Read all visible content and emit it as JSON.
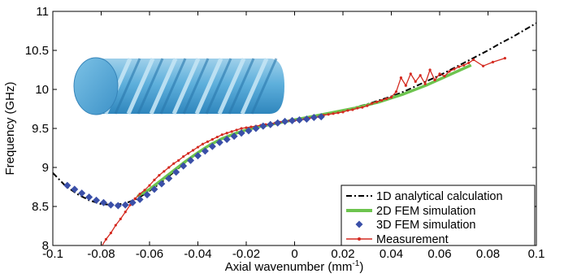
{
  "chart_data": {
    "type": "line",
    "title": "",
    "xlabel": "Axial wavenumber (mm",
    "xlabel_exponent": "-1",
    "xlabel_close": ")",
    "ylabel": "Frequency (GHz)",
    "xlim": [
      -0.1,
      0.1
    ],
    "ylim": [
      8,
      11
    ],
    "x_ticks": [
      "-0.1",
      "-0.08",
      "-0.06",
      "-0.04",
      "-0.02",
      "0",
      "0.02",
      "0.04",
      "0.06",
      "0.08",
      "0.1"
    ],
    "x_tick_values": [
      -0.1,
      -0.08,
      -0.06,
      -0.04,
      -0.02,
      0,
      0.02,
      0.04,
      0.06,
      0.08,
      0.1
    ],
    "y_ticks": [
      "8",
      "8.5",
      "9",
      "9.5",
      "10",
      "10.5",
      "11"
    ],
    "y_tick_values": [
      8,
      8.5,
      9,
      9.5,
      10,
      10.5,
      11
    ],
    "grid": false,
    "legend_position": "bottom-right",
    "inset_image": "twisted-helical-waveguide-rendering",
    "series": [
      {
        "name": "1D analytical calculation",
        "style": "dash-dot",
        "color": "#000000",
        "x": [
          -0.1,
          -0.095,
          -0.09,
          -0.085,
          -0.08,
          -0.075,
          -0.07,
          -0.065,
          -0.06,
          -0.055,
          -0.05,
          -0.045,
          -0.04,
          -0.035,
          -0.03,
          -0.025,
          -0.02,
          -0.015,
          -0.01,
          -0.005,
          0,
          0.005,
          0.01,
          0.015,
          0.02,
          0.025,
          0.03,
          0.035,
          0.04,
          0.045,
          0.05,
          0.055,
          0.06,
          0.065,
          0.07,
          0.075,
          0.08,
          0.085,
          0.09,
          0.095,
          0.1
        ],
        "y": [
          8.93,
          8.77,
          8.66,
          8.58,
          8.53,
          8.52,
          8.54,
          8.6,
          8.7,
          8.81,
          8.94,
          9.07,
          9.19,
          9.29,
          9.37,
          9.43,
          9.48,
          9.52,
          9.55,
          9.58,
          9.61,
          9.64,
          9.67,
          9.7,
          9.73,
          9.77,
          9.81,
          9.86,
          9.91,
          9.97,
          10.04,
          10.11,
          10.18,
          10.26,
          10.34,
          10.42,
          10.5,
          10.59,
          10.67,
          10.76,
          10.85
        ]
      },
      {
        "name": "2D FEM simulation",
        "style": "solid-thick",
        "color": "#6dc44e",
        "x": [
          -0.065,
          -0.06,
          -0.055,
          -0.05,
          -0.045,
          -0.04,
          -0.035,
          -0.03,
          -0.025,
          -0.02,
          -0.015,
          -0.01,
          -0.005,
          0,
          0.005,
          0.01,
          0.015,
          0.02,
          0.025,
          0.03,
          0.035,
          0.04,
          0.045,
          0.05,
          0.055,
          0.06,
          0.065,
          0.07,
          0.073
        ],
        "y": [
          8.63,
          8.72,
          8.84,
          8.96,
          9.08,
          9.19,
          9.29,
          9.37,
          9.43,
          9.48,
          9.52,
          9.55,
          9.58,
          9.61,
          9.64,
          9.67,
          9.7,
          9.73,
          9.76,
          9.8,
          9.84,
          9.89,
          9.94,
          10.0,
          10.06,
          10.13,
          10.2,
          10.27,
          10.31
        ]
      },
      {
        "name": "3D FEM simulation",
        "style": "diamond-markers",
        "color": "#3a4fa8",
        "x": [
          -0.094,
          -0.091,
          -0.088,
          -0.085,
          -0.082,
          -0.079,
          -0.076,
          -0.073,
          -0.07,
          -0.067,
          -0.064,
          -0.061,
          -0.058,
          -0.055,
          -0.052,
          -0.049,
          -0.046,
          -0.043,
          -0.04,
          -0.037,
          -0.034,
          -0.031,
          -0.028,
          -0.025,
          -0.022,
          -0.019,
          -0.016,
          -0.013,
          -0.01,
          -0.007,
          -0.004,
          -0.001,
          0.002,
          0.005,
          0.008,
          0.011
        ],
        "y": [
          8.77,
          8.72,
          8.67,
          8.62,
          8.58,
          8.55,
          8.52,
          8.51,
          8.52,
          8.55,
          8.59,
          8.65,
          8.72,
          8.79,
          8.86,
          8.94,
          9.02,
          9.09,
          9.15,
          9.21,
          9.27,
          9.32,
          9.36,
          9.4,
          9.44,
          9.47,
          9.5,
          9.53,
          9.55,
          9.57,
          9.59,
          9.6,
          9.61,
          9.62,
          9.64,
          9.65
        ]
      },
      {
        "name": "Measurement",
        "style": "line-with-dots",
        "color": "#d42a20",
        "x": [
          -0.08,
          -0.078,
          -0.076,
          -0.074,
          -0.072,
          -0.07,
          -0.068,
          -0.066,
          -0.064,
          -0.062,
          -0.06,
          -0.058,
          -0.056,
          -0.054,
          -0.052,
          -0.05,
          -0.048,
          -0.046,
          -0.044,
          -0.042,
          -0.04,
          -0.038,
          -0.036,
          -0.034,
          -0.032,
          -0.03,
          -0.028,
          -0.026,
          -0.024,
          -0.022,
          -0.02,
          -0.018,
          -0.016,
          -0.014,
          -0.012,
          -0.01,
          -0.008,
          -0.006,
          -0.004,
          -0.002,
          0,
          0.002,
          0.004,
          0.006,
          0.008,
          0.01,
          0.012,
          0.014,
          0.016,
          0.018,
          0.02,
          0.022,
          0.024,
          0.026,
          0.028,
          0.03,
          0.032,
          0.034,
          0.036,
          0.038,
          0.04,
          0.042,
          0.044,
          0.046,
          0.048,
          0.05,
          0.052,
          0.054,
          0.056,
          0.058,
          0.06,
          0.062,
          0.064,
          0.066,
          0.068,
          0.07,
          0.072,
          0.074,
          0.078,
          0.082,
          0.087
        ],
        "y": [
          7.98,
          8.08,
          8.16,
          8.26,
          8.34,
          8.43,
          8.52,
          8.6,
          8.66,
          8.71,
          8.77,
          8.84,
          8.9,
          8.95,
          9.0,
          9.05,
          9.09,
          9.14,
          9.18,
          9.22,
          9.26,
          9.3,
          9.33,
          9.36,
          9.39,
          9.42,
          9.44,
          9.46,
          9.48,
          9.5,
          9.51,
          9.52,
          9.53,
          9.54,
          9.55,
          9.56,
          9.57,
          9.58,
          9.59,
          9.6,
          9.6,
          9.61,
          9.62,
          9.63,
          9.64,
          9.65,
          9.67,
          9.68,
          9.69,
          9.7,
          9.71,
          9.73,
          9.74,
          9.76,
          9.77,
          9.79,
          9.82,
          9.84,
          9.86,
          9.88,
          9.9,
          9.97,
          10.15,
          10.05,
          10.2,
          10.1,
          10.18,
          10.07,
          10.25,
          10.12,
          10.2,
          10.17,
          10.23,
          10.26,
          10.29,
          10.31,
          10.34,
          10.38,
          10.3,
          10.35,
          10.4
        ]
      }
    ]
  }
}
